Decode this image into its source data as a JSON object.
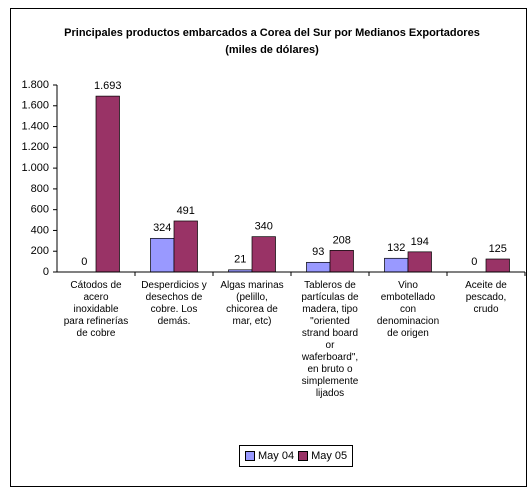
{
  "chart_data": {
    "type": "bar",
    "title": "Principales productos embarcados a Corea del Sur por Medianos Exportadores",
    "subtitle": "(miles de dólares)",
    "categories": [
      "Cátodos de acero inoxidable para refinerías de cobre",
      "Desperdicios y desechos de cobre. Los demás.",
      "Algas marinas (pelillo, chicorea de mar, etc)",
      "Tableros de partículas de madera, tipo \"oriented strand board or waferboard\", en bruto o simplemente lijados",
      "Vino embotellado con denominacion de origen",
      "Aceite de pescado, crudo"
    ],
    "series": [
      {
        "name": "May 04",
        "color": "#9999ff",
        "values": [
          0,
          324,
          21,
          93,
          132,
          0
        ]
      },
      {
        "name": "May 05",
        "color": "#993366",
        "values": [
          1693,
          491,
          340,
          208,
          194,
          125
        ],
        "value_labels": [
          "1.693",
          "491",
          "340",
          "208",
          "194",
          "125"
        ]
      }
    ],
    "ylim": [
      0,
      1800
    ],
    "yticks": [
      0,
      200,
      400,
      600,
      800,
      {
        "value": 1000,
        "label": "1.000"
      },
      {
        "value": 1200,
        "label": "1.200"
      },
      {
        "value": 1400,
        "label": "1.400"
      },
      {
        "value": 1600,
        "label": "1.600"
      },
      {
        "value": 1800,
        "label": "1.800"
      }
    ],
    "legend": "bottom"
  }
}
